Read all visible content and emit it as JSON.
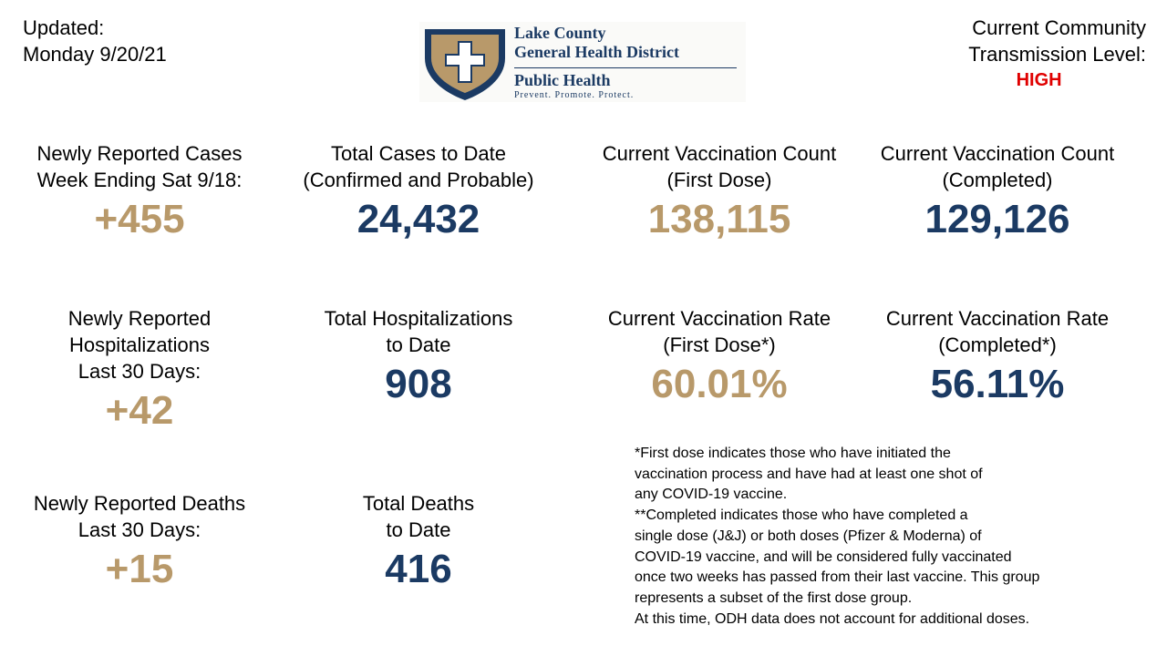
{
  "header": {
    "updated": [
      "Updated:",
      "Monday 9/20/21"
    ],
    "logo": {
      "name": [
        "Lake County",
        "General Health District"
      ],
      "brand": "Public Health",
      "tagline": "Prevent. Promote. Protect."
    },
    "transmission": {
      "label": [
        "Current Community",
        "Transmission Level:"
      ],
      "level": "HIGH"
    }
  },
  "stats": [
    {
      "label": [
        "Newly Reported Cases",
        "Week Ending Sat 9/18:"
      ],
      "value": "+455"
    },
    {
      "label": [
        "Total Cases to Date",
        "(Confirmed and Probable)"
      ],
      "value": "24,432"
    },
    {
      "label": [
        "Current Vaccination Count",
        "(First Dose)"
      ],
      "value": "138,115"
    },
    {
      "label": [
        "Current Vaccination Count",
        "(Completed)"
      ],
      "value": "129,126"
    },
    {
      "label": [
        "Newly Reported",
        "Hospitalizations",
        "Last 30 Days:"
      ],
      "value": "+42"
    },
    {
      "label": [
        "Total Hospitalizations",
        "to Date"
      ],
      "value": "908"
    },
    {
      "label": [
        "Current Vaccination Rate",
        "(First Dose*)"
      ],
      "value": "60.01%"
    },
    {
      "label": [
        "Current Vaccination Rate",
        "(Completed*)"
      ],
      "value": "56.11%"
    },
    {
      "label": [
        "Newly Reported Deaths",
        "Last 30 Days:"
      ],
      "value": "+15"
    },
    {
      "label": [
        "Total Deaths",
        "to Date"
      ],
      "value": "416"
    }
  ],
  "footnote": [
    "*First dose indicates those who have initiated the",
    "vaccination process and have had at least one shot of",
    "any COVID-19 vaccine.",
    "**Completed indicates those who have completed a",
    "single dose (J&J) or both doses (Pfizer & Moderna) of",
    "COVID-19 vaccine, and will be considered fully vaccinated",
    "once two weeks has passed from their last vaccine. This group",
    "represents a subset of the first dose group.",
    "At this time, ODH data does not account for additional doses."
  ]
}
